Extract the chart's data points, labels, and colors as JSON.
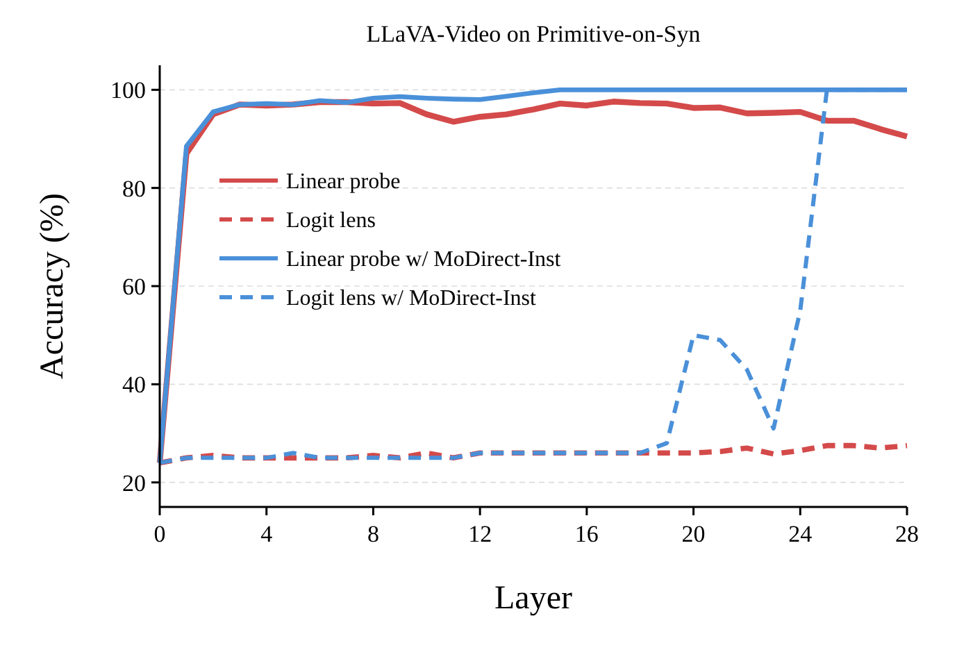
{
  "chart_data": {
    "type": "line",
    "title": "LLaVA-Video on Primitive-on-Syn",
    "xlabel": "Layer",
    "ylabel": "Accuracy (%)",
    "x": [
      0,
      1,
      2,
      3,
      4,
      5,
      6,
      7,
      8,
      9,
      10,
      11,
      12,
      13,
      14,
      15,
      16,
      17,
      18,
      19,
      20,
      21,
      22,
      23,
      24,
      25,
      26,
      27,
      28
    ],
    "series": [
      {
        "name": "Linear probe",
        "color": "#d44a4a",
        "line_style": "solid",
        "values": [
          24,
          87,
          95,
          97,
          96.8,
          97,
          97.5,
          97.5,
          97.2,
          97.3,
          95,
          93.5,
          94.5,
          95,
          96,
          97.2,
          96.8,
          97.6,
          97.3,
          97.2,
          96.3,
          96.4,
          95.2,
          95.3,
          95.5,
          93.7,
          93.7,
          92,
          90.5
        ]
      },
      {
        "name": "Logit lens",
        "color": "#d44a4a",
        "line_style": "dashed",
        "values": [
          24,
          25,
          25.5,
          25,
          25,
          25,
          25,
          25,
          25.5,
          25,
          26,
          25,
          26,
          26,
          26,
          26,
          26,
          26,
          26,
          26,
          26,
          26.3,
          27,
          25.8,
          26.5,
          27.5,
          27.5,
          27,
          27.5
        ]
      },
      {
        "name": "Linear probe w/ MoDirect-Inst",
        "color": "#4a90d9",
        "line_style": "solid",
        "values": [
          24,
          88.5,
          95.5,
          97,
          97.2,
          97,
          97.8,
          97.4,
          98.3,
          98.6,
          98.3,
          98.1,
          98,
          98.7,
          99.4,
          100,
          100,
          100,
          100,
          100,
          100,
          100,
          100,
          100,
          100,
          100,
          100,
          100,
          100
        ]
      },
      {
        "name": "Logit lens w/ MoDirect-Inst",
        "color": "#4a90d9",
        "line_style": "dashed",
        "values": [
          24,
          25,
          25,
          25,
          25,
          26,
          25,
          25,
          25,
          25,
          25,
          25,
          26,
          26,
          26,
          26,
          26,
          26,
          26,
          28,
          50,
          49,
          43,
          31,
          55,
          100,
          100,
          100,
          100
        ]
      }
    ],
    "xlim": [
      0,
      28
    ],
    "xticks": [
      0,
      4,
      8,
      12,
      16,
      20,
      24,
      28
    ],
    "ylim": [
      15,
      105
    ],
    "yticks": [
      20,
      40,
      60,
      80,
      100
    ],
    "grid": "y",
    "legend": "left",
    "marker": "none"
  }
}
